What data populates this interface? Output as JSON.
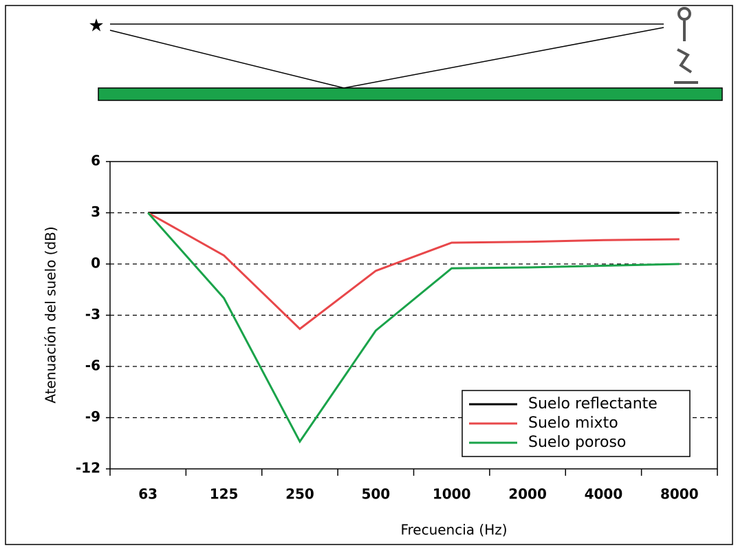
{
  "chart_data": {
    "type": "line",
    "xlabel": "Frecuencia (Hz)",
    "ylabel": "Atenuación del suelo (dB)",
    "categories": [
      "63",
      "125",
      "250",
      "500",
      "1000",
      "2000",
      "4000",
      "8000"
    ],
    "series": [
      {
        "name": "Suelo reflectante",
        "color": "#000000",
        "values": [
          3,
          3,
          3,
          3,
          3,
          3,
          3,
          3
        ]
      },
      {
        "name": "Suelo mixto",
        "color": "#e8474a",
        "values": [
          3,
          0.5,
          -3.8,
          -0.4,
          1.25,
          1.3,
          1.4,
          1.45
        ]
      },
      {
        "name": "Suelo poroso",
        "color": "#1aa34a",
        "values": [
          3,
          -2,
          -10.4,
          -3.9,
          -0.25,
          -0.2,
          -0.1,
          0
        ]
      }
    ],
    "ylim": [
      -12,
      6
    ],
    "yticks": [
      -12,
      -9,
      -6,
      -3,
      0,
      3,
      6
    ],
    "grid": true,
    "legend": "lower right"
  }
}
